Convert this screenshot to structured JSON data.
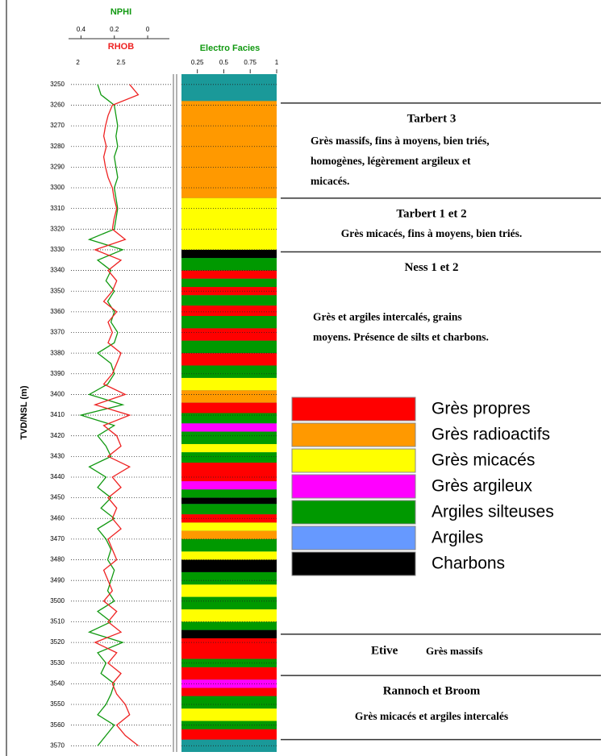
{
  "chart_data": {
    "type": "well-log",
    "ylabel": "TVD/NSL (m)",
    "ylim": [
      3245,
      3573
    ],
    "yticks": [
      3250,
      3260,
      3270,
      3280,
      3290,
      3300,
      3310,
      3320,
      3330,
      3340,
      3350,
      3360,
      3370,
      3380,
      3390,
      3400,
      3410,
      3420,
      3430,
      3440,
      3450,
      3460,
      3470,
      3480,
      3490,
      3500,
      3510,
      3520,
      3530,
      3540,
      3550,
      3560,
      3570
    ],
    "logs": {
      "depth": [
        3250,
        3255,
        3260,
        3265,
        3270,
        3275,
        3280,
        3285,
        3290,
        3295,
        3300,
        3305,
        3310,
        3315,
        3320,
        3325,
        3330,
        3335,
        3340,
        3345,
        3350,
        3355,
        3360,
        3365,
        3370,
        3375,
        3380,
        3385,
        3390,
        3395,
        3400,
        3405,
        3410,
        3415,
        3420,
        3425,
        3430,
        3435,
        3440,
        3445,
        3450,
        3455,
        3460,
        3465,
        3470,
        3475,
        3480,
        3485,
        3490,
        3495,
        3500,
        3505,
        3510,
        3515,
        3520,
        3525,
        3530,
        3535,
        3540,
        3545,
        3550,
        3555,
        3560,
        3565,
        3570
      ],
      "series": [
        {
          "name": "NPHI",
          "color": "#119911",
          "xlim": [
            0.46,
            -0.14
          ],
          "xticks": [
            0.4,
            0.2,
            0
          ],
          "values": [
            0.3,
            0.28,
            0.2,
            0.19,
            0.18,
            0.19,
            0.18,
            0.2,
            0.19,
            0.18,
            0.2,
            0.19,
            0.18,
            0.19,
            0.2,
            0.35,
            0.15,
            0.3,
            0.22,
            0.25,
            0.2,
            0.24,
            0.2,
            0.22,
            0.18,
            0.2,
            0.3,
            0.22,
            0.2,
            0.24,
            0.35,
            0.15,
            0.4,
            0.2,
            0.3,
            0.25,
            0.22,
            0.35,
            0.25,
            0.3,
            0.22,
            0.28,
            0.2,
            0.3,
            0.25,
            0.22,
            0.24,
            0.2,
            0.22,
            0.24,
            0.2,
            0.3,
            0.22,
            0.35,
            0.15,
            0.3,
            0.25,
            0.28,
            0.2,
            0.22,
            0.25,
            0.3,
            0.2,
            0.25,
            0.3
          ]
        },
        {
          "name": "RHOB",
          "color": "#ee2222",
          "xlim": [
            1.92,
            3.08
          ],
          "xticks": [
            2,
            2.5
          ],
          "values": [
            2.6,
            2.7,
            2.4,
            2.35,
            2.32,
            2.3,
            2.33,
            2.3,
            2.32,
            2.35,
            2.4,
            2.42,
            2.45,
            2.42,
            2.4,
            2.55,
            2.2,
            2.5,
            2.35,
            2.45,
            2.4,
            2.3,
            2.45,
            2.35,
            2.4,
            2.35,
            2.5,
            2.45,
            2.4,
            2.3,
            2.55,
            2.2,
            2.6,
            2.3,
            2.45,
            2.5,
            2.35,
            2.6,
            2.4,
            2.5,
            2.35,
            2.45,
            2.4,
            2.5,
            2.35,
            2.4,
            2.45,
            2.3,
            2.35,
            2.4,
            2.3,
            2.45,
            2.35,
            2.5,
            2.2,
            2.45,
            2.35,
            2.5,
            2.4,
            2.45,
            2.55,
            2.6,
            2.45,
            2.55,
            2.7
          ]
        }
      ]
    },
    "facies_track": {
      "title": "Electro Facies",
      "xlim": [
        0.1,
        1
      ],
      "xticks": [
        0.25,
        0.5,
        0.75,
        1
      ],
      "background": "#1a9999",
      "intervals": [
        [
          3258,
          3305,
          1
        ],
        [
          3305,
          3330,
          2
        ],
        [
          3330,
          3334,
          6
        ],
        [
          3334,
          3340,
          4
        ],
        [
          3340,
          3344,
          0
        ],
        [
          3344,
          3348,
          4
        ],
        [
          3348,
          3352,
          0
        ],
        [
          3352,
          3357,
          4
        ],
        [
          3357,
          3362,
          0
        ],
        [
          3362,
          3368,
          4
        ],
        [
          3368,
          3374,
          0
        ],
        [
          3374,
          3380,
          4
        ],
        [
          3380,
          3386,
          0
        ],
        [
          3386,
          3392,
          4
        ],
        [
          3392,
          3398,
          2
        ],
        [
          3398,
          3404,
          1
        ],
        [
          3404,
          3409,
          0
        ],
        [
          3409,
          3414,
          4
        ],
        [
          3414,
          3418,
          3
        ],
        [
          3418,
          3424,
          4
        ],
        [
          3424,
          3428,
          2
        ],
        [
          3428,
          3433,
          4
        ],
        [
          3433,
          3442,
          0
        ],
        [
          3442,
          3446,
          3
        ],
        [
          3446,
          3450,
          4
        ],
        [
          3450,
          3453,
          6
        ],
        [
          3453,
          3458,
          4
        ],
        [
          3458,
          3462,
          0
        ],
        [
          3462,
          3466,
          2
        ],
        [
          3466,
          3470,
          1
        ],
        [
          3470,
          3476,
          4
        ],
        [
          3476,
          3480,
          2
        ],
        [
          3480,
          3486,
          6
        ],
        [
          3486,
          3492,
          4
        ],
        [
          3492,
          3498,
          2
        ],
        [
          3498,
          3504,
          4
        ],
        [
          3504,
          3510,
          2
        ],
        [
          3510,
          3514,
          4
        ],
        [
          3514,
          3518,
          6
        ],
        [
          3518,
          3528,
          0
        ],
        [
          3528,
          3532,
          4
        ],
        [
          3532,
          3538,
          0
        ],
        [
          3538,
          3542,
          3
        ],
        [
          3542,
          3546,
          0
        ],
        [
          3546,
          3552,
          4
        ],
        [
          3552,
          3558,
          2
        ],
        [
          3558,
          3562,
          4
        ],
        [
          3562,
          3567,
          0
        ]
      ]
    },
    "legend": [
      {
        "name": "Grès propres",
        "color": "#ff0000"
      },
      {
        "name": "Grès radioactifs",
        "color": "#ff9900"
      },
      {
        "name": "Grès micacés",
        "color": "#ffff00"
      },
      {
        "name": "Grès argileux",
        "color": "#ff00ff"
      },
      {
        "name": "Argiles silteuses",
        "color": "#009900"
      },
      {
        "name": "Argiles",
        "color": "#6699ff"
      },
      {
        "name": "Charbons",
        "color": "#000000"
      }
    ],
    "zones": [
      {
        "top": 3259,
        "name": "Tarbert 3",
        "description": [
          "Grès massifs, fins à moyens, bien triés,",
          "homogènes, légèrement argileux et",
          "micacés."
        ]
      },
      {
        "top": 3305,
        "name": "Tarbert 1 et 2",
        "description": [
          "Grès micacés, fins à moyens, bien triés."
        ]
      },
      {
        "top": 3331,
        "name": "Ness 1 et 2",
        "description": [
          "Grès et argiles intercalés, grains",
          "moyens. Présence de silts et charbons."
        ]
      },
      {
        "top": 3516,
        "name": "Etive",
        "description": [
          "Grès massifs"
        ]
      },
      {
        "top": 3536,
        "name": "Rannoch et Broom",
        "description": [
          "Grès micacés et argiles intercalés"
        ]
      },
      {
        "top": 3567
      }
    ]
  }
}
